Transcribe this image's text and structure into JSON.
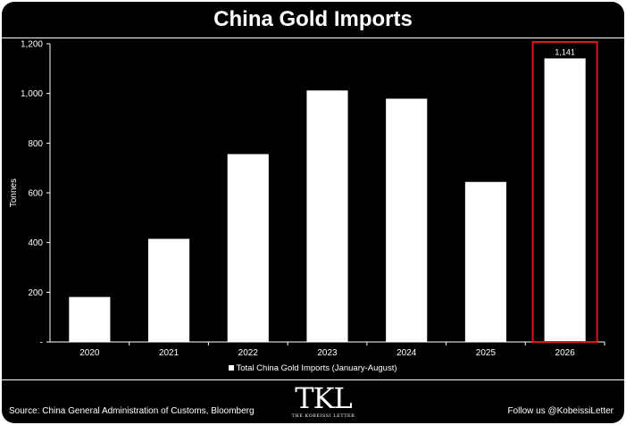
{
  "chart_data": {
    "type": "bar",
    "title": "China Gold Imports",
    "ylabel": "Tonnes",
    "xlabel": "",
    "categories": [
      "2020",
      "2021",
      "2022",
      "2023",
      "2024",
      "2025",
      "2026"
    ],
    "series": [
      {
        "name": "Total China Gold Imports (January-August)",
        "values": [
          181,
          415,
          756,
          1012,
          979,
          644,
          1141
        ]
      }
    ],
    "ylim": [
      0,
      1200
    ],
    "yticks": [
      "-",
      "200",
      "400",
      "600",
      "800",
      "1,000",
      "1,200"
    ],
    "data_labels": [
      {
        "category": "2026",
        "text": "1,141"
      }
    ],
    "highlight": {
      "category": "2026",
      "color": "#e0141e"
    },
    "grid": false,
    "legend_position": "bottom",
    "colors": {
      "bars": "#ffffff",
      "background": "#000000",
      "text": "#ffffff"
    }
  },
  "footer": {
    "source": "Source: China General Administration of Customs, Bloomberg",
    "follow": "Follow us @KobeissiLetter",
    "logo_text": "TKL",
    "logo_subtext": "THE KOBEISSI LETTER"
  }
}
